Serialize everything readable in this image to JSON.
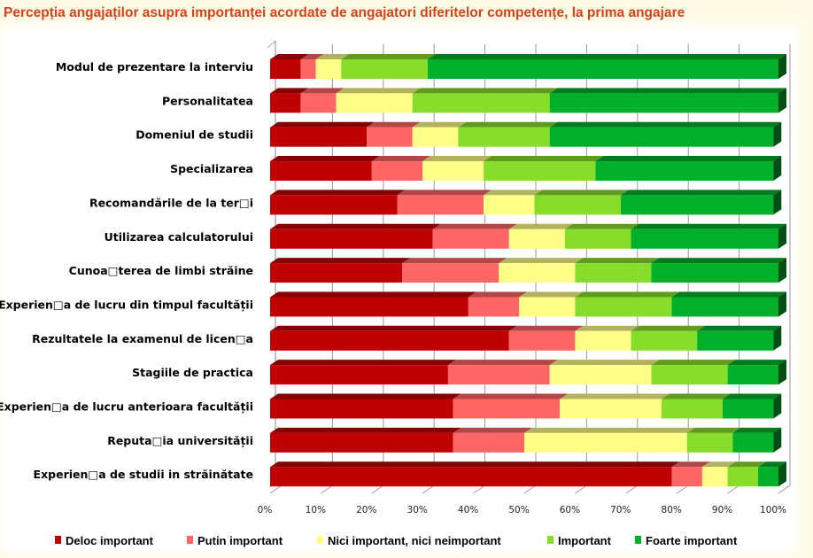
{
  "title": "Percepția angajaților asupra importanței acordate de angajatori diferitelor competențe, la prima angajare",
  "chart_data": {
    "type": "bar",
    "orientation": "horizontal",
    "stacked": "100%",
    "style": "3d",
    "title": "Percepția angajaților asupra importanței acordate de angajatori diferitelor competențe, la prima angajare",
    "xlim": [
      0,
      100
    ],
    "x_ticks": [
      "0%",
      "10%",
      "20%",
      "30%",
      "40%",
      "50%",
      "60%",
      "70%",
      "80%",
      "90%",
      "100%"
    ],
    "grid": true,
    "legend_position": "bottom",
    "categories": [
      "Modul de prezentare la interviu",
      "Personalitatea",
      "Domeniul de studii",
      "Specializarea",
      "Recomandările de la ter□i",
      "Utilizarea calculatorului",
      "Cunoa□terea de limbi străine",
      "Experien□a de lucru din timpul facultății",
      "Rezultatele la examenul de licen□a",
      "Stagiile de practica",
      "Experien□a de lucru anterioara facultății",
      "Reputa□ia universității",
      "Experien□a de studii in străinătate"
    ],
    "series": [
      {
        "name": "Deloc important",
        "color": "#c00000",
        "values": [
          6,
          6,
          19,
          20,
          25,
          32,
          26,
          39,
          47,
          35,
          36,
          36,
          79
        ]
      },
      {
        "name": "Putin important",
        "color": "#ff6666",
        "values": [
          3,
          7,
          9,
          10,
          17,
          15,
          19,
          10,
          13,
          20,
          21,
          14,
          6
        ]
      },
      {
        "name": "Nici important, nici neimportant",
        "color": "#ffff88",
        "values": [
          5,
          15,
          9,
          12,
          10,
          11,
          15,
          11,
          11,
          20,
          20,
          32,
          5
        ]
      },
      {
        "name": "Important",
        "color": "#88dd2a",
        "values": [
          17,
          27,
          18,
          22,
          17,
          13,
          15,
          19,
          13,
          15,
          12,
          9,
          6
        ]
      },
      {
        "name": "Foarte important",
        "color": "#00b02a",
        "values": [
          69,
          45,
          44,
          35,
          30,
          29,
          25,
          21,
          15,
          10,
          10,
          8,
          4
        ]
      }
    ]
  }
}
